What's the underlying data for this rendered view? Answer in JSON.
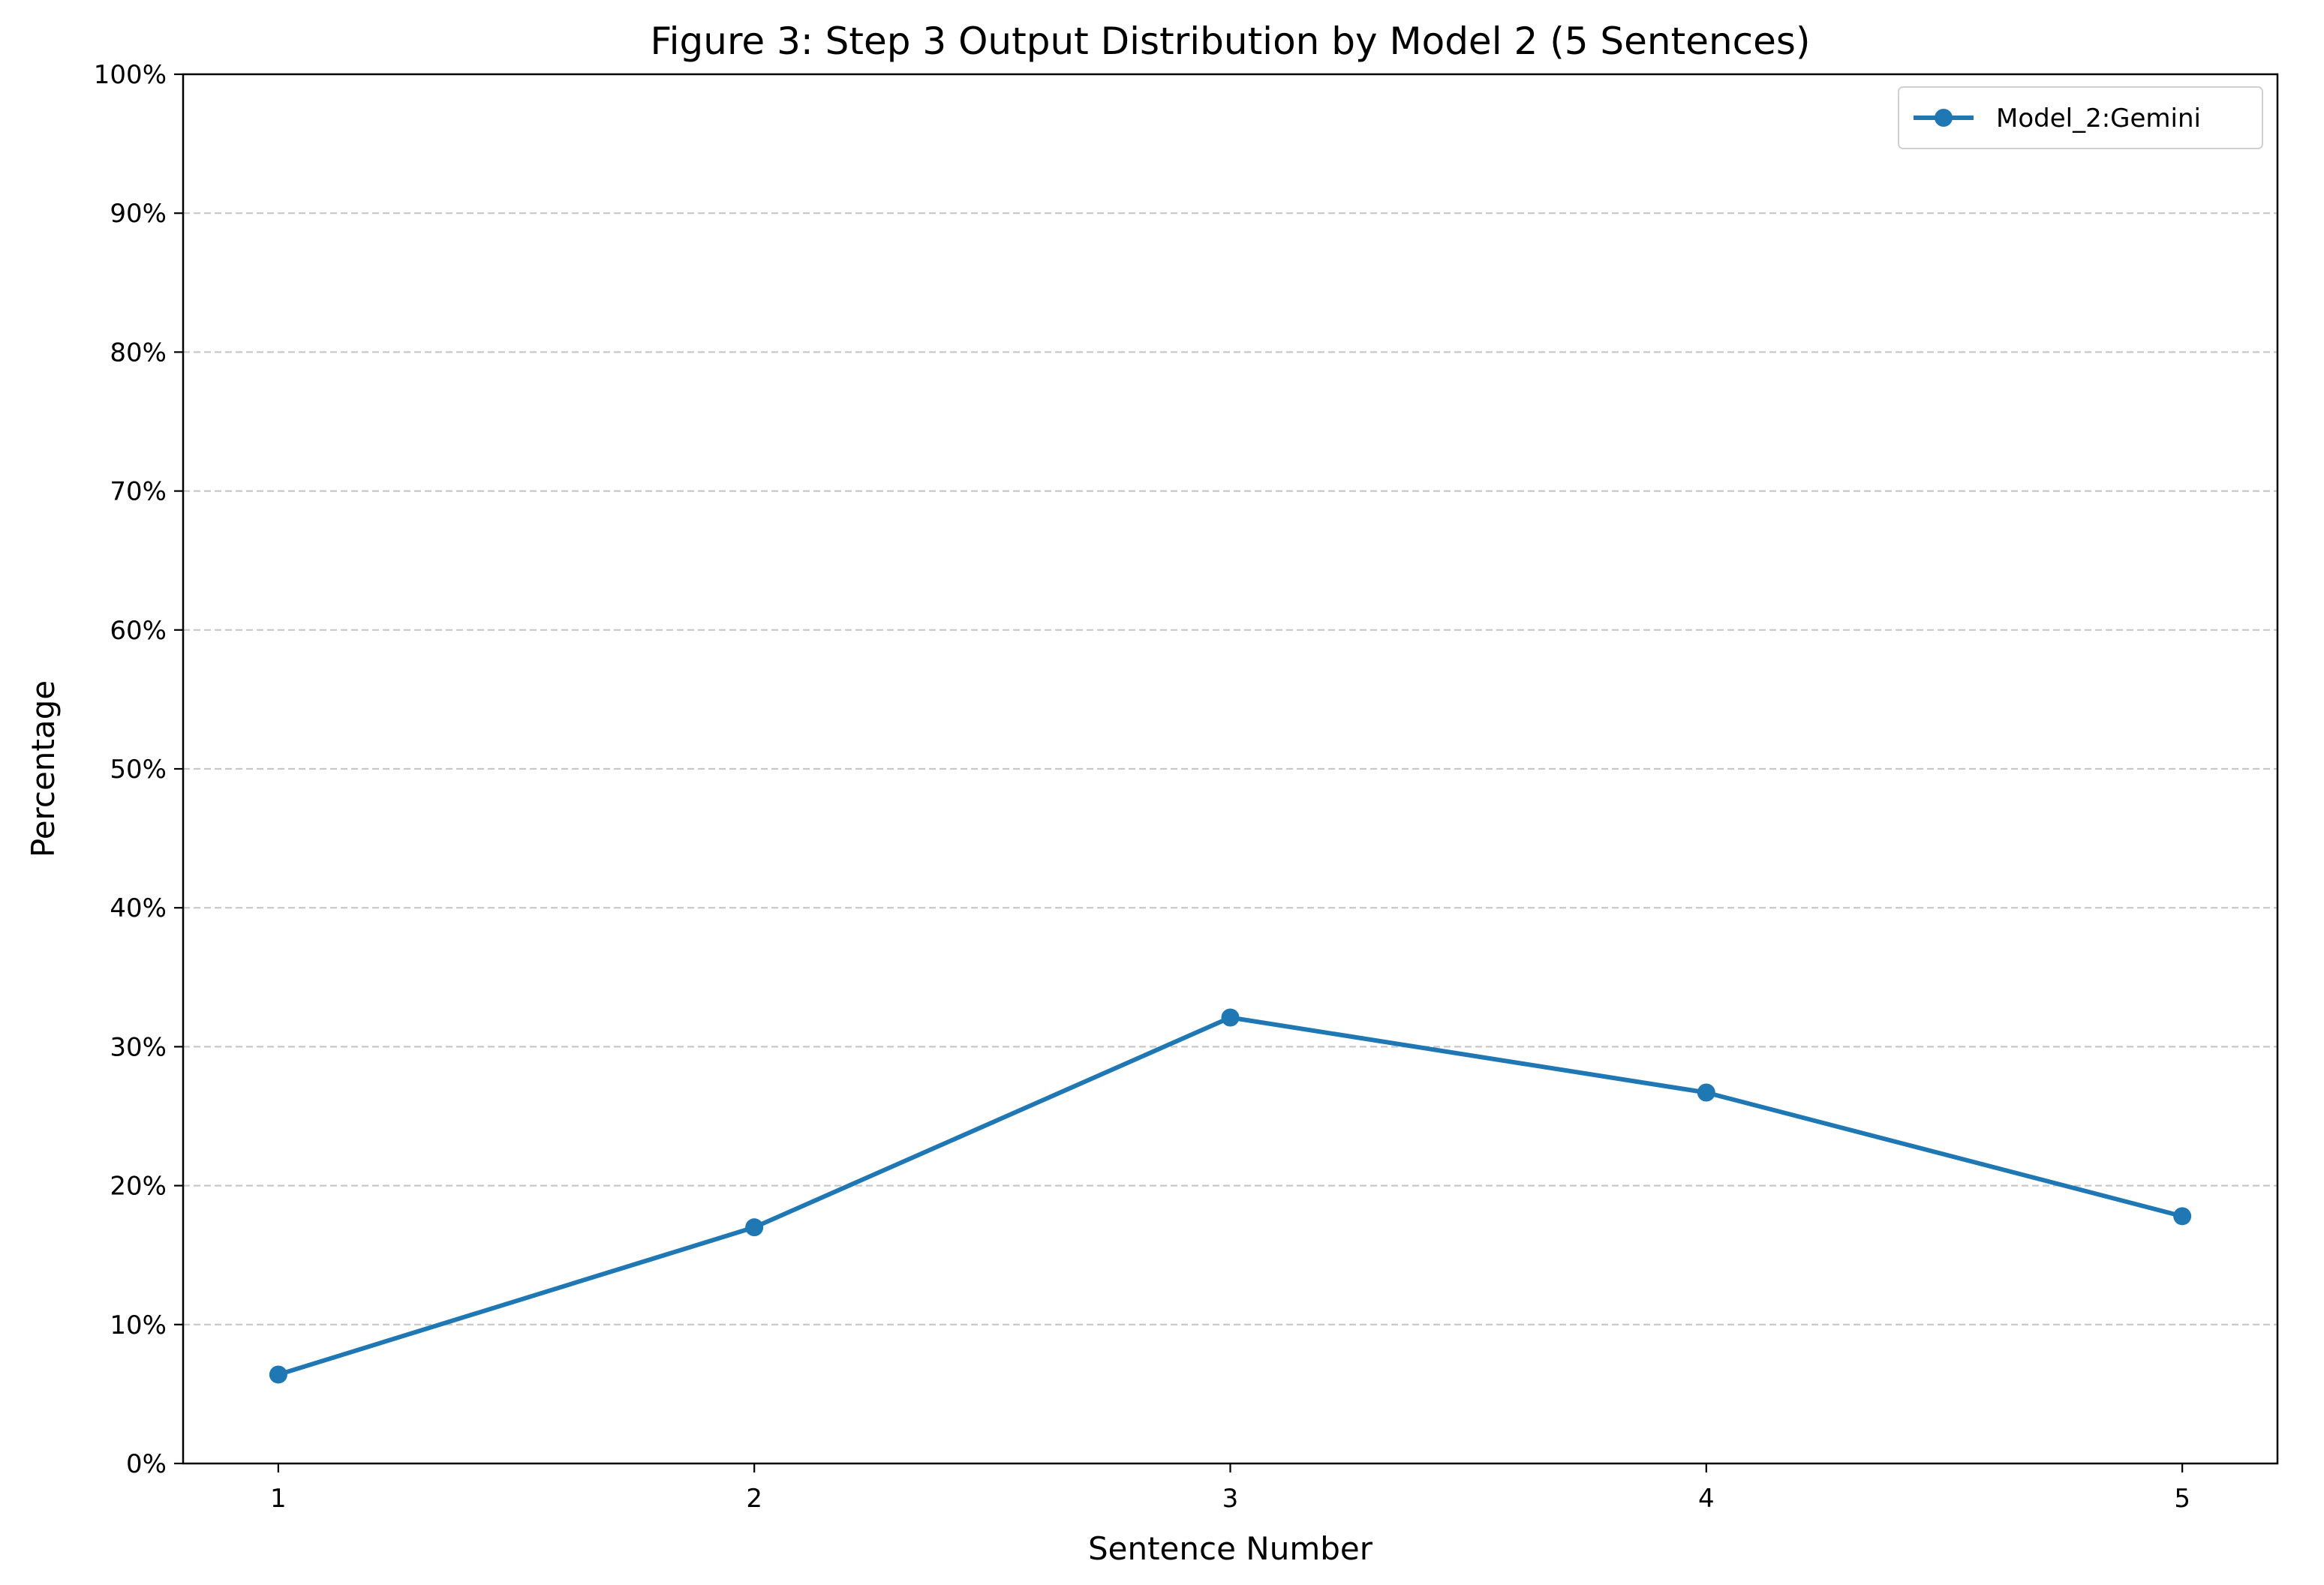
{
  "chart_data": {
    "type": "line",
    "title": "Figure 3: Step 3 Output Distribution by Model 2 (5 Sentences)",
    "xlabel": "Sentence Number",
    "ylabel": "Percentage",
    "categories": [
      "1",
      "2",
      "3",
      "4",
      "5"
    ],
    "x": [
      1,
      2,
      3,
      4,
      5
    ],
    "series": [
      {
        "name": "Model_2:Gemini",
        "color": "#1f77b4",
        "values": [
          6.4,
          17.0,
          32.1,
          26.7,
          17.8
        ]
      }
    ],
    "xlim": [
      0.8,
      5.2
    ],
    "ylim": [
      0,
      100
    ],
    "yticks": [
      0,
      10,
      20,
      30,
      40,
      50,
      60,
      70,
      80,
      90,
      100
    ],
    "ytick_labels": [
      "0%",
      "10%",
      "20%",
      "30%",
      "40%",
      "50%",
      "60%",
      "70%",
      "80%",
      "90%",
      "100%"
    ],
    "grid": {
      "y": true,
      "x": false,
      "style": "dashed"
    },
    "legend": "top-right"
  }
}
